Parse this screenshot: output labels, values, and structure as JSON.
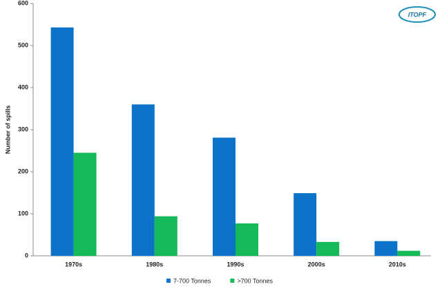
{
  "chart_data": {
    "type": "bar",
    "logo": "ITOPF",
    "ylabel": "Number of spills",
    "categories": [
      "1970s",
      "1980s",
      "1990s",
      "2000s",
      "2010s"
    ],
    "series": [
      {
        "name": "7-700 Tonnes",
        "color": "#0b74c9",
        "values": [
          543,
          360,
          281,
          149,
          35
        ]
      },
      {
        "name": ">700 Tonnes",
        "color": "#14ba58",
        "values": [
          245,
          94,
          77,
          33,
          12
        ]
      }
    ],
    "ylim": [
      0,
      600
    ],
    "yticks": [
      0,
      100,
      200,
      300,
      400,
      500,
      600
    ],
    "legend": "bottom"
  }
}
